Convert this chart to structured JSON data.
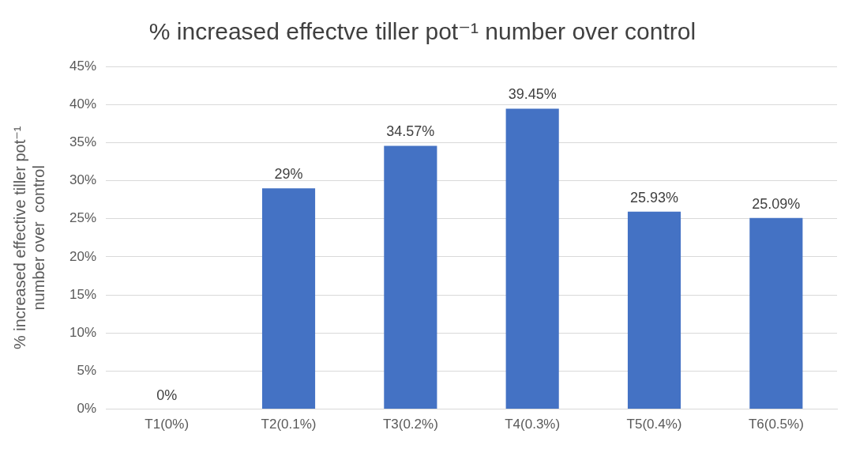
{
  "chart_data": {
    "type": "bar",
    "title": "% increased effectve tiller pot⁻¹ number over control",
    "ylabel": "% increased effective tiller pot⁻¹ number over  control",
    "categories": [
      "T1(0%)",
      "T2(0.1%)",
      "T3(0.2%)",
      "T4(0.3%)",
      "T5(0.4%)",
      "T6(0.5%)"
    ],
    "values": [
      0,
      29,
      34.57,
      39.45,
      25.93,
      25.09
    ],
    "value_labels": [
      "0%",
      "29%",
      "34.57%",
      "39.45%",
      "25.93%",
      "25.09%"
    ],
    "color": "#4472c4",
    "ylim": [
      0,
      45
    ],
    "yticks": [
      {
        "value": 0,
        "label": "0%"
      },
      {
        "value": 5,
        "label": "5%"
      },
      {
        "value": 10,
        "label": "10%"
      },
      {
        "value": 15,
        "label": "15%"
      },
      {
        "value": 20,
        "label": "20%"
      },
      {
        "value": 25,
        "label": "25%"
      },
      {
        "value": 30,
        "label": "30%"
      },
      {
        "value": 35,
        "label": "35%"
      },
      {
        "value": 40,
        "label": "40%"
      },
      {
        "value": 45,
        "label": "45%"
      }
    ],
    "grid": "y",
    "legend": false
  }
}
